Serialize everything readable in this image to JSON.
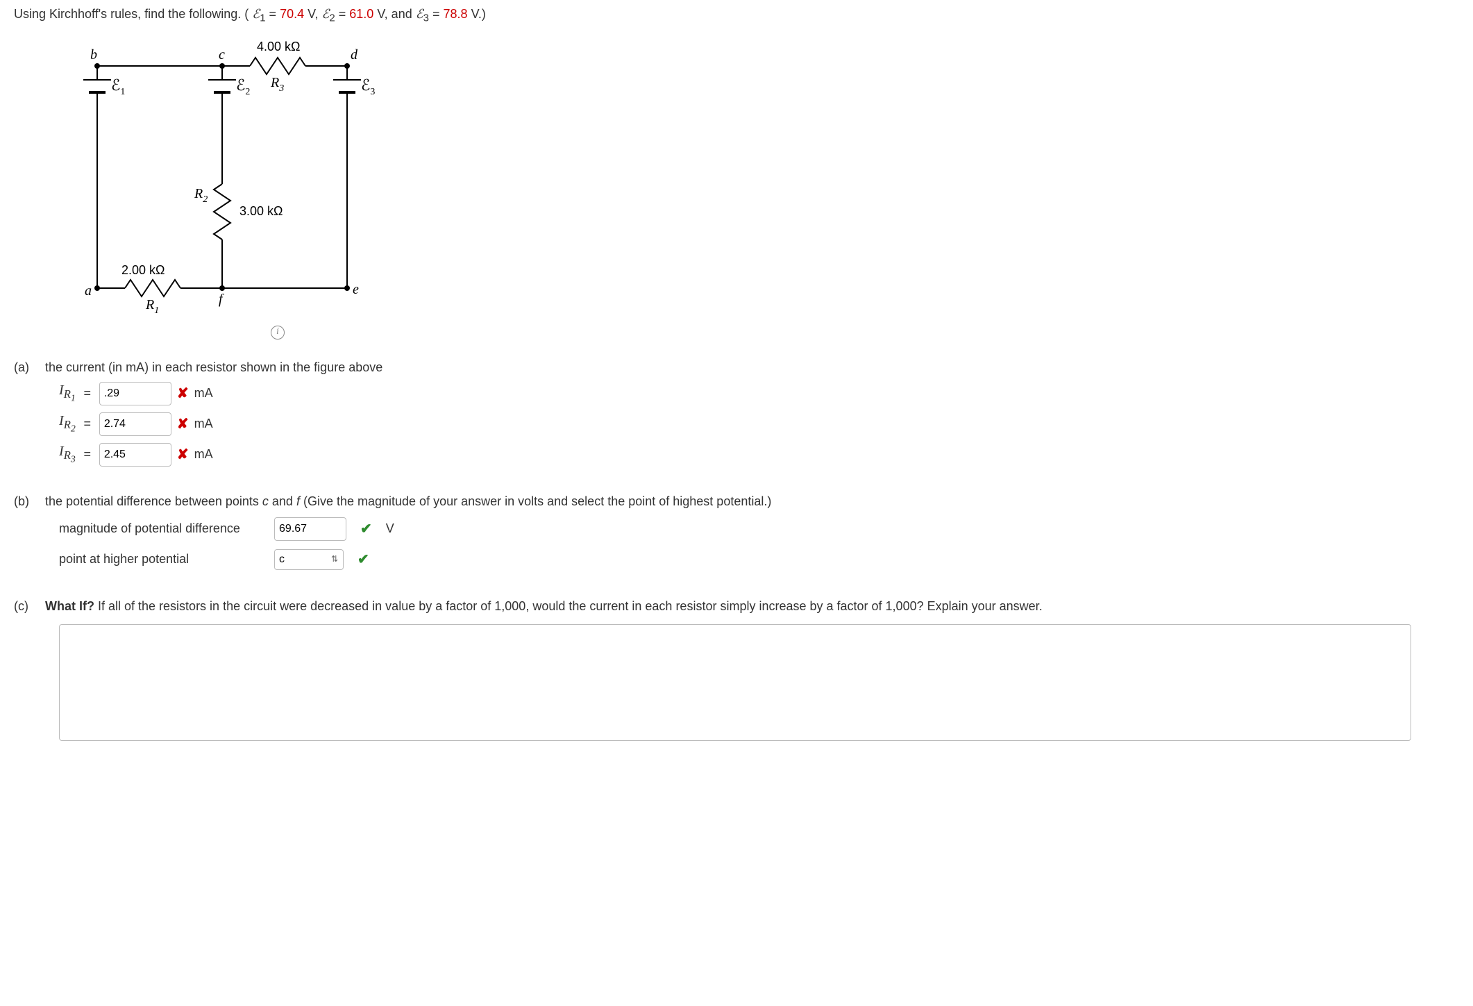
{
  "header": {
    "prefix": "Using Kirchhoff's rules, find the following. (",
    "e1_sym": "ℰ",
    "e1_sub": "1",
    "eq": " = ",
    "e1_val": "70.4",
    "v_unit": " V, ",
    "e2_sym": "ℰ",
    "e2_sub": "2",
    "e2_val": "61.0",
    "and_txt": " V, and ",
    "e3_sym": "ℰ",
    "e3_sub": "3",
    "e3_val": "78.8",
    "suffix": " V.)"
  },
  "circuit": {
    "labels": {
      "b": "b",
      "c": "c",
      "d": "d",
      "a": "a",
      "e": "e",
      "f": "f"
    },
    "r3_label": "4.00 kΩ",
    "r3_name": "R",
    "r3_sub": "3",
    "r2_name": "R",
    "r2_sub": "2",
    "r2_label": "3.00 kΩ",
    "r1_val": "2.00 kΩ",
    "r1_name": "R",
    "r1_sub": "1",
    "e1": "ℰ",
    "e1_sub": "1",
    "e2": "ℰ",
    "e2_sub": "2",
    "e3": "ℰ",
    "e3_sub": "3",
    "colors": {
      "stroke": "#000000",
      "text": "#000000",
      "node": "#000000"
    }
  },
  "part_a": {
    "label": "(a)",
    "text": "the current (in mA) in each resistor shown in the figure above",
    "rows": [
      {
        "var": "I",
        "sub": "R",
        "subsub": "1",
        "val": ".29",
        "unit": "mA",
        "status": "wrong"
      },
      {
        "var": "I",
        "sub": "R",
        "subsub": "2",
        "val": "2.74",
        "unit": "mA",
        "status": "wrong"
      },
      {
        "var": "I",
        "sub": "R",
        "subsub": "3",
        "val": "2.45",
        "unit": "mA",
        "status": "wrong"
      }
    ]
  },
  "part_b": {
    "label": "(b)",
    "text_before": "the potential difference between points ",
    "pt_c": "c",
    "and": " and ",
    "pt_f": "f",
    "text_after": " (Give the magnitude of your answer in volts and select the point of highest potential.)",
    "row1_label": "magnitude of potential difference",
    "row1_val": "69.67",
    "row1_unit": "V",
    "row2_label": "point at higher potential",
    "row2_val": "c"
  },
  "part_c": {
    "label": "(c)",
    "bold": "What If?",
    "text": " If all of the resistors in the circuit were decreased in value by a factor of 1,000, would the current in each resistor simply increase by a factor of 1,000? Explain your answer.",
    "answer": ""
  }
}
